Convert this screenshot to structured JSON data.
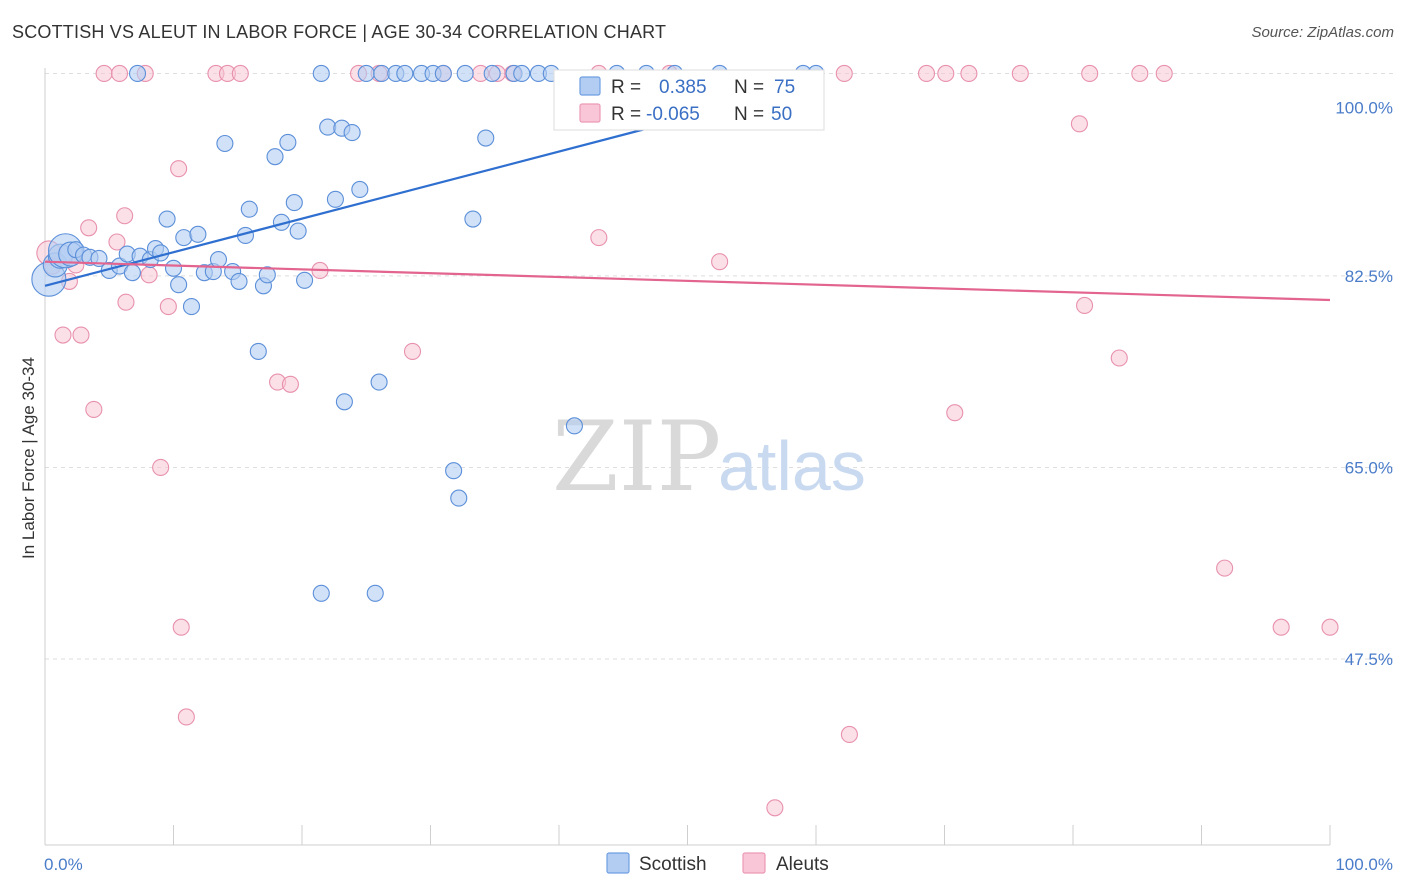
{
  "header": {
    "title": "SCOTTISH VS ALEUT IN LABOR FORCE | AGE 30-34 CORRELATION CHART",
    "source": "Source: ZipAtlas.com"
  },
  "watermark": {
    "zip": "ZIP",
    "atlas": "atlas"
  },
  "chart_data": {
    "type": "scatter",
    "title": "SCOTTISH VS ALEUT IN LABOR FORCE | AGE 30-34 CORRELATION CHART",
    "xlabel": "",
    "ylabel": "In Labor Force | Age 30-34",
    "xlim": [
      0,
      100
    ],
    "ylim": [
      30.5,
      101.5
    ],
    "x_tick_labels": {
      "left": "0.0%",
      "right": "100.0%"
    },
    "y_ticks": [
      {
        "value": 100.0,
        "label": "100.0%"
      },
      {
        "value": 82.5,
        "label": "82.5%"
      },
      {
        "value": 65.0,
        "label": "65.0%"
      },
      {
        "value": 47.5,
        "label": "47.5%"
      }
    ],
    "grid": true,
    "legend_position": "top-center",
    "series": [
      {
        "name": "Scottish",
        "color": "#6fa0e8",
        "stroke": "#5b8fd9",
        "line_color": "#2f6fd0",
        "R": "0.385",
        "N": "75",
        "trend": {
          "x": [
            0,
            60
          ],
          "y": [
            81.6,
            100.0
          ]
        },
        "points": [
          {
            "x": 0.3,
            "y": 82.2,
            "s": 3
          },
          {
            "x": 0.8,
            "y": 83.5,
            "s": 2
          },
          {
            "x": 1.2,
            "y": 84.3,
            "s": 2
          },
          {
            "x": 1.6,
            "y": 84.8,
            "s": 3
          },
          {
            "x": 2.0,
            "y": 84.5,
            "s": 2
          },
          {
            "x": 2.4,
            "y": 84.9,
            "s": 1
          },
          {
            "x": 3.0,
            "y": 84.4,
            "s": 1
          },
          {
            "x": 3.5,
            "y": 84.2,
            "s": 1
          },
          {
            "x": 4.2,
            "y": 84.1,
            "s": 1
          },
          {
            "x": 5.0,
            "y": 83.0,
            "s": 1
          },
          {
            "x": 5.8,
            "y": 83.4,
            "s": 1
          },
          {
            "x": 6.4,
            "y": 84.5,
            "s": 1
          },
          {
            "x": 6.8,
            "y": 82.8,
            "s": 1
          },
          {
            "x": 7.4,
            "y": 84.3,
            "s": 1
          },
          {
            "x": 8.2,
            "y": 84.0,
            "s": 1
          },
          {
            "x": 8.6,
            "y": 85.0,
            "s": 1
          },
          {
            "x": 9.0,
            "y": 84.6,
            "s": 1
          },
          {
            "x": 9.5,
            "y": 87.7,
            "s": 1
          },
          {
            "x": 10.0,
            "y": 83.2,
            "s": 1
          },
          {
            "x": 10.4,
            "y": 81.7,
            "s": 1
          },
          {
            "x": 10.8,
            "y": 86.0,
            "s": 1
          },
          {
            "x": 11.4,
            "y": 79.7,
            "s": 1
          },
          {
            "x": 11.9,
            "y": 86.3,
            "s": 1
          },
          {
            "x": 12.4,
            "y": 82.8,
            "s": 1
          },
          {
            "x": 13.1,
            "y": 82.9,
            "s": 1
          },
          {
            "x": 13.5,
            "y": 84.0,
            "s": 1
          },
          {
            "x": 14.0,
            "y": 94.6,
            "s": 1
          },
          {
            "x": 14.6,
            "y": 82.9,
            "s": 1
          },
          {
            "x": 15.1,
            "y": 82.0,
            "s": 1
          },
          {
            "x": 15.6,
            "y": 86.2,
            "s": 1
          },
          {
            "x": 15.9,
            "y": 88.6,
            "s": 1
          },
          {
            "x": 16.6,
            "y": 75.6,
            "s": 1
          },
          {
            "x": 17.0,
            "y": 81.6,
            "s": 1
          },
          {
            "x": 17.3,
            "y": 82.6,
            "s": 1
          },
          {
            "x": 17.9,
            "y": 93.4,
            "s": 1
          },
          {
            "x": 18.4,
            "y": 87.4,
            "s": 1
          },
          {
            "x": 18.9,
            "y": 94.7,
            "s": 1
          },
          {
            "x": 19.4,
            "y": 89.2,
            "s": 1
          },
          {
            "x": 19.7,
            "y": 86.6,
            "s": 1
          },
          {
            "x": 20.2,
            "y": 82.1,
            "s": 1
          },
          {
            "x": 21.5,
            "y": 53.5,
            "s": 1
          },
          {
            "x": 21.5,
            "y": 101.0,
            "s": 1
          },
          {
            "x": 22.0,
            "y": 96.1,
            "s": 1
          },
          {
            "x": 22.6,
            "y": 89.5,
            "s": 1
          },
          {
            "x": 23.1,
            "y": 96.0,
            "s": 1
          },
          {
            "x": 23.3,
            "y": 71.0,
            "s": 1
          },
          {
            "x": 23.9,
            "y": 95.6,
            "s": 1
          },
          {
            "x": 24.5,
            "y": 90.4,
            "s": 1
          },
          {
            "x": 25.0,
            "y": 101.0,
            "s": 1
          },
          {
            "x": 25.7,
            "y": 53.5,
            "s": 1
          },
          {
            "x": 26.0,
            "y": 72.8,
            "s": 1
          },
          {
            "x": 26.2,
            "y": 101.0,
            "s": 1
          },
          {
            "x": 27.3,
            "y": 101.0,
            "s": 1
          },
          {
            "x": 28.0,
            "y": 101.0,
            "s": 1
          },
          {
            "x": 29.3,
            "y": 101.0,
            "s": 1
          },
          {
            "x": 30.2,
            "y": 101.0,
            "s": 1
          },
          {
            "x": 31.0,
            "y": 101.0,
            "s": 1
          },
          {
            "x": 31.8,
            "y": 64.7,
            "s": 1
          },
          {
            "x": 32.2,
            "y": 62.2,
            "s": 1
          },
          {
            "x": 32.7,
            "y": 101.0,
            "s": 1
          },
          {
            "x": 33.3,
            "y": 87.7,
            "s": 1
          },
          {
            "x": 34.3,
            "y": 95.1,
            "s": 1
          },
          {
            "x": 34.8,
            "y": 101.0,
            "s": 1
          },
          {
            "x": 36.5,
            "y": 101.0,
            "s": 1
          },
          {
            "x": 37.1,
            "y": 101.0,
            "s": 1
          },
          {
            "x": 38.4,
            "y": 101.0,
            "s": 1
          },
          {
            "x": 39.4,
            "y": 101.0,
            "s": 1
          },
          {
            "x": 41.2,
            "y": 68.8,
            "s": 1
          },
          {
            "x": 44.5,
            "y": 101.0,
            "s": 1
          },
          {
            "x": 46.8,
            "y": 101.0,
            "s": 1
          },
          {
            "x": 49.0,
            "y": 101.0,
            "s": 1
          },
          {
            "x": 52.5,
            "y": 101.0,
            "s": 1
          },
          {
            "x": 59.0,
            "y": 101.0,
            "s": 1
          },
          {
            "x": 60.0,
            "y": 101.0,
            "s": 1
          },
          {
            "x": 7.2,
            "y": 101.0,
            "s": 1
          }
        ]
      },
      {
        "name": "Aleuts",
        "color": "#f3a6bf",
        "stroke": "#e891ad",
        "line_color": "#e2648f",
        "R": "-0.065",
        "N": "50",
        "trend": {
          "x": [
            0,
            100
          ],
          "y": [
            83.8,
            80.3
          ]
        },
        "points": [
          {
            "x": 0.3,
            "y": 84.6,
            "s": 2
          },
          {
            "x": 0.6,
            "y": 83.4,
            "s": 1
          },
          {
            "x": 1.4,
            "y": 77.1,
            "s": 1
          },
          {
            "x": 1.9,
            "y": 82.0,
            "s": 1
          },
          {
            "x": 2.4,
            "y": 83.5,
            "s": 1
          },
          {
            "x": 2.8,
            "y": 77.1,
            "s": 1
          },
          {
            "x": 3.4,
            "y": 86.9,
            "s": 1
          },
          {
            "x": 3.8,
            "y": 70.3,
            "s": 1
          },
          {
            "x": 4.6,
            "y": 101.0,
            "s": 1
          },
          {
            "x": 5.6,
            "y": 85.6,
            "s": 1
          },
          {
            "x": 5.8,
            "y": 101.0,
            "s": 1
          },
          {
            "x": 6.2,
            "y": 88.0,
            "s": 1
          },
          {
            "x": 6.3,
            "y": 80.1,
            "s": 1
          },
          {
            "x": 7.8,
            "y": 101.0,
            "s": 1
          },
          {
            "x": 8.1,
            "y": 82.6,
            "s": 1
          },
          {
            "x": 9.0,
            "y": 65.0,
            "s": 1
          },
          {
            "x": 9.6,
            "y": 79.7,
            "s": 1
          },
          {
            "x": 10.4,
            "y": 92.3,
            "s": 1
          },
          {
            "x": 10.6,
            "y": 50.4,
            "s": 1
          },
          {
            "x": 11.0,
            "y": 42.2,
            "s": 1
          },
          {
            "x": 13.3,
            "y": 101.0,
            "s": 1
          },
          {
            "x": 14.2,
            "y": 101.0,
            "s": 1
          },
          {
            "x": 15.2,
            "y": 101.0,
            "s": 1
          },
          {
            "x": 18.1,
            "y": 72.8,
            "s": 1
          },
          {
            "x": 19.1,
            "y": 72.6,
            "s": 1
          },
          {
            "x": 21.4,
            "y": 83.0,
            "s": 1
          },
          {
            "x": 24.4,
            "y": 101.0,
            "s": 1
          },
          {
            "x": 26.0,
            "y": 101.0,
            "s": 1
          },
          {
            "x": 28.6,
            "y": 75.6,
            "s": 1
          },
          {
            "x": 31.0,
            "y": 101.0,
            "s": 1
          },
          {
            "x": 33.9,
            "y": 101.0,
            "s": 1
          },
          {
            "x": 35.2,
            "y": 101.0,
            "s": 1
          },
          {
            "x": 36.4,
            "y": 101.0,
            "s": 1
          },
          {
            "x": 43.1,
            "y": 101.0,
            "s": 1
          },
          {
            "x": 43.1,
            "y": 86.0,
            "s": 1
          },
          {
            "x": 48.6,
            "y": 101.0,
            "s": 1
          },
          {
            "x": 52.5,
            "y": 83.8,
            "s": 1
          },
          {
            "x": 56.8,
            "y": 33.9,
            "s": 1
          },
          {
            "x": 62.2,
            "y": 101.0,
            "s": 1
          },
          {
            "x": 62.6,
            "y": 40.6,
            "s": 1
          },
          {
            "x": 68.6,
            "y": 101.0,
            "s": 1
          },
          {
            "x": 70.1,
            "y": 101.0,
            "s": 1
          },
          {
            "x": 70.8,
            "y": 70.0,
            "s": 1
          },
          {
            "x": 71.9,
            "y": 101.0,
            "s": 1
          },
          {
            "x": 75.9,
            "y": 101.0,
            "s": 1
          },
          {
            "x": 80.5,
            "y": 96.4,
            "s": 1
          },
          {
            "x": 81.3,
            "y": 101.0,
            "s": 1
          },
          {
            "x": 80.9,
            "y": 79.8,
            "s": 1
          },
          {
            "x": 83.6,
            "y": 75.0,
            "s": 1
          },
          {
            "x": 85.2,
            "y": 101.0,
            "s": 1
          },
          {
            "x": 87.1,
            "y": 101.0,
            "s": 1
          },
          {
            "x": 91.8,
            "y": 55.8,
            "s": 1
          },
          {
            "x": 96.2,
            "y": 50.4,
            "s": 1
          },
          {
            "x": 100.0,
            "y": 50.4,
            "s": 1
          }
        ]
      }
    ]
  }
}
